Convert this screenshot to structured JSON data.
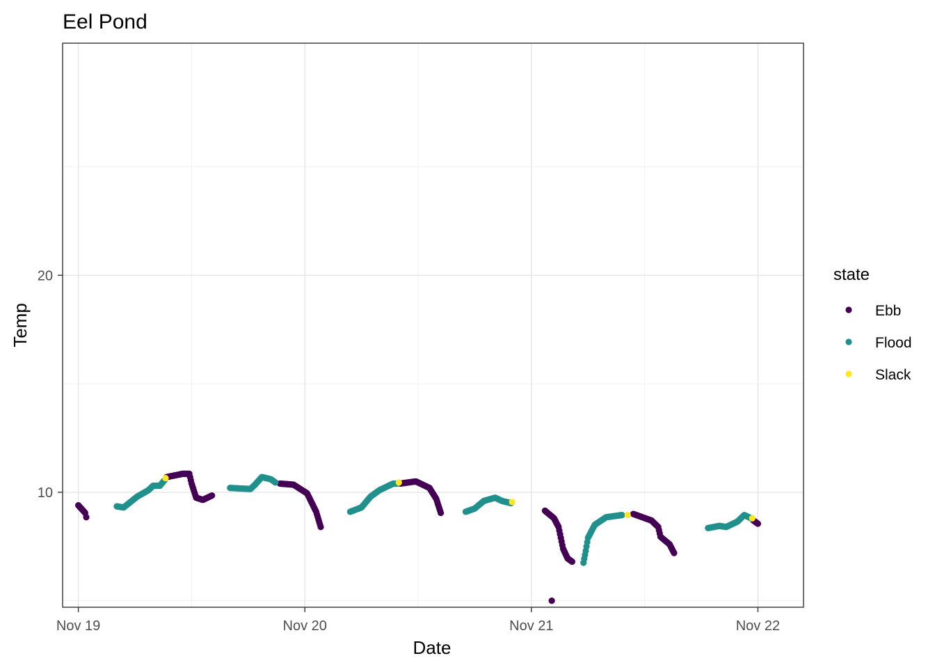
{
  "chart_data": {
    "type": "scatter",
    "title": "Eel Pond",
    "xlabel": "Date",
    "ylabel": "Temp",
    "x_unit": "days since Nov 19 00:00",
    "xlim": [
      "2023-11-18T22:20",
      "2023-11-22T04:50"
    ],
    "ylim": [
      4.7,
      30.7
    ],
    "x_ticks": [
      {
        "label": "Nov 19",
        "value": "Nov 19"
      },
      {
        "label": "Nov 20",
        "value": "Nov 20"
      },
      {
        "label": "Nov 21",
        "value": "Nov 21"
      },
      {
        "label": "Nov 22",
        "value": "Nov 22"
      }
    ],
    "x_minor_ticks": [
      "Nov 19 12:00",
      "Nov 20 12:00",
      "Nov 21 12:00"
    ],
    "y_ticks": [
      {
        "label": "10",
        "value": 10
      },
      {
        "label": "20",
        "value": 20
      }
    ],
    "y_minor_ticks": [
      5,
      15,
      25
    ],
    "grid": true,
    "legend": {
      "title": "state",
      "position": "right",
      "entries": [
        {
          "label": "Ebb",
          "color": "#440154"
        },
        {
          "label": "Flood",
          "color": "#21908C"
        },
        {
          "label": "Slack",
          "color": "#FDE725"
        }
      ]
    },
    "series": [
      {
        "name": "Ebb",
        "color": "#440154",
        "segments": [
          [
            [
              0.0,
              9.4
            ],
            [
              0.03,
              9.05
            ],
            [
              0.035,
              8.85
            ]
          ],
          [
            [
              0.39,
              10.7
            ],
            [
              0.46,
              10.85
            ],
            [
              0.49,
              10.85
            ],
            [
              0.5,
              10.4
            ],
            [
              0.52,
              9.75
            ],
            [
              0.55,
              9.65
            ],
            [
              0.59,
              9.85
            ]
          ],
          [
            [
              0.89,
              10.4
            ],
            [
              0.95,
              10.35
            ],
            [
              1.01,
              9.95
            ],
            [
              1.05,
              9.1
            ],
            [
              1.07,
              8.4
            ]
          ],
          [
            [
              1.42,
              10.4
            ],
            [
              1.49,
              10.5
            ],
            [
              1.55,
              10.2
            ],
            [
              1.58,
              9.7
            ],
            [
              1.6,
              9.05
            ]
          ],
          [
            [
              2.06,
              9.15
            ],
            [
              2.1,
              8.8
            ],
            [
              2.12,
              8.4
            ],
            [
              2.14,
              7.4
            ],
            [
              2.16,
              6.95
            ],
            [
              2.18,
              6.8
            ]
          ],
          [
            [
              2.09,
              5.0
            ]
          ],
          [
            [
              2.45,
              9.0
            ],
            [
              2.53,
              8.7
            ],
            [
              2.56,
              8.4
            ],
            [
              2.57,
              7.95
            ],
            [
              2.61,
              7.6
            ],
            [
              2.63,
              7.2
            ]
          ],
          [
            [
              2.98,
              8.7
            ],
            [
              3.0,
              8.55
            ]
          ]
        ]
      },
      {
        "name": "Flood",
        "color": "#21908C",
        "segments": [
          [
            [
              0.17,
              9.35
            ],
            [
              0.2,
              9.3
            ],
            [
              0.26,
              9.8
            ],
            [
              0.31,
              10.1
            ],
            [
              0.33,
              10.3
            ],
            [
              0.36,
              10.3
            ],
            [
              0.38,
              10.55
            ]
          ],
          [
            [
              0.67,
              10.2
            ],
            [
              0.76,
              10.15
            ],
            [
              0.78,
              10.35
            ],
            [
              0.81,
              10.7
            ],
            [
              0.85,
              10.6
            ],
            [
              0.87,
              10.45
            ]
          ],
          [
            [
              1.2,
              9.1
            ],
            [
              1.25,
              9.3
            ],
            [
              1.29,
              9.8
            ],
            [
              1.33,
              10.1
            ],
            [
              1.39,
              10.4
            ],
            [
              1.41,
              10.4
            ]
          ],
          [
            [
              1.71,
              9.1
            ],
            [
              1.75,
              9.25
            ],
            [
              1.79,
              9.6
            ],
            [
              1.84,
              9.75
            ],
            [
              1.87,
              9.6
            ],
            [
              1.91,
              9.5
            ]
          ],
          [
            [
              2.23,
              6.75
            ],
            [
              2.24,
              7.3
            ],
            [
              2.25,
              7.9
            ],
            [
              2.28,
              8.5
            ],
            [
              2.33,
              8.85
            ],
            [
              2.4,
              8.95
            ]
          ],
          [
            [
              2.78,
              8.35
            ],
            [
              2.83,
              8.45
            ],
            [
              2.86,
              8.4
            ],
            [
              2.91,
              8.65
            ],
            [
              2.94,
              8.95
            ],
            [
              2.97,
              8.8
            ]
          ]
        ]
      },
      {
        "name": "Slack",
        "color": "#FDE725",
        "segments": [
          [
            [
              0.385,
              10.65
            ]
          ],
          [
            [
              1.415,
              10.45
            ]
          ],
          [
            [
              1.915,
              9.55
            ]
          ],
          [
            [
              2.425,
              8.95
            ]
          ],
          [
            [
              2.975,
              8.8
            ]
          ]
        ]
      }
    ]
  }
}
